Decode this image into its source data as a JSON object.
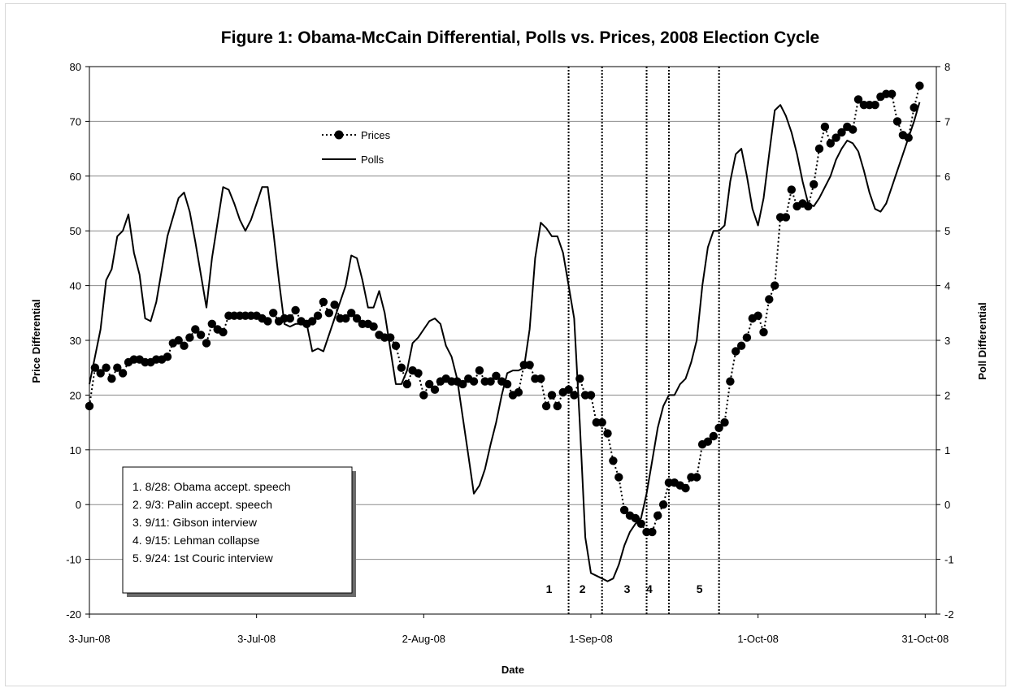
{
  "chart_data": {
    "type": "line",
    "title": "Figure 1: Obama-McCain Differential, Polls vs. Prices, 2008 Election Cycle",
    "xlabel": "Date",
    "ylabel_left": "Price Differential",
    "ylabel_right": "Poll Differential",
    "ylim_left": [
      -20,
      80
    ],
    "ylim_right": [
      -2,
      8
    ],
    "yticks_left": [
      "80",
      "70",
      "60",
      "50",
      "40",
      "30",
      "20",
      "10",
      "0",
      "-10",
      "-20"
    ],
    "yticks_right": [
      "8",
      "7",
      "6",
      "5",
      "4",
      "3",
      "2",
      "1",
      "0",
      "-1",
      "-2"
    ],
    "x_range_days": [
      0,
      152
    ],
    "x_ticks": [
      {
        "label": "3-Jun-08",
        "day": 0
      },
      {
        "label": "3-Jul-08",
        "day": 30
      },
      {
        "label": "2-Aug-08",
        "day": 60
      },
      {
        "label": "1-Sep-08",
        "day": 90
      },
      {
        "label": "1-Oct-08",
        "day": 120
      },
      {
        "label": "31-Oct-08",
        "day": 150
      }
    ],
    "grid": "horizontal",
    "legend_position": "top-left",
    "series": [
      {
        "name": "Prices",
        "axis": "left",
        "style": "dotted-markers",
        "points": [
          [
            0,
            18
          ],
          [
            1,
            25
          ],
          [
            2,
            24
          ],
          [
            3,
            25
          ],
          [
            4,
            23
          ],
          [
            5,
            25
          ],
          [
            6,
            24
          ],
          [
            7,
            26
          ],
          [
            8,
            26.5
          ],
          [
            9,
            26.5
          ],
          [
            10,
            26
          ],
          [
            11,
            26
          ],
          [
            12,
            26.5
          ],
          [
            13,
            26.5
          ],
          [
            14,
            27
          ],
          [
            15,
            29.5
          ],
          [
            16,
            30
          ],
          [
            17,
            29
          ],
          [
            18,
            30.5
          ],
          [
            19,
            32
          ],
          [
            20,
            31
          ],
          [
            21,
            29.5
          ],
          [
            22,
            33
          ],
          [
            23,
            32
          ],
          [
            24,
            31.5
          ],
          [
            25,
            34.5
          ],
          [
            26,
            34.5
          ],
          [
            27,
            34.5
          ],
          [
            28,
            34.5
          ],
          [
            29,
            34.5
          ],
          [
            30,
            34.5
          ],
          [
            31,
            34
          ],
          [
            32,
            33.5
          ],
          [
            33,
            35
          ],
          [
            34,
            33.5
          ],
          [
            35,
            34
          ],
          [
            36,
            34
          ],
          [
            37,
            35.5
          ],
          [
            38,
            33.5
          ],
          [
            39,
            33
          ],
          [
            40,
            33.5
          ],
          [
            41,
            34.5
          ],
          [
            42,
            37
          ],
          [
            43,
            35
          ],
          [
            44,
            36.5
          ],
          [
            45,
            34
          ],
          [
            46,
            34
          ],
          [
            47,
            35
          ],
          [
            48,
            34
          ],
          [
            49,
            33
          ],
          [
            50,
            33
          ],
          [
            51,
            32.5
          ],
          [
            52,
            31
          ],
          [
            53,
            30.5
          ],
          [
            54,
            30.5
          ],
          [
            55,
            29
          ],
          [
            56,
            25
          ],
          [
            57,
            22
          ],
          [
            58,
            24.5
          ],
          [
            59,
            24
          ],
          [
            60,
            20
          ],
          [
            61,
            22
          ],
          [
            62,
            21
          ],
          [
            63,
            22.5
          ],
          [
            64,
            23
          ],
          [
            65,
            22.5
          ],
          [
            66,
            22.5
          ],
          [
            67,
            22
          ],
          [
            68,
            23
          ],
          [
            69,
            22.5
          ],
          [
            70,
            24.5
          ],
          [
            71,
            22.5
          ],
          [
            72,
            22.5
          ],
          [
            73,
            23.5
          ],
          [
            74,
            22.5
          ],
          [
            75,
            22
          ],
          [
            76,
            20
          ],
          [
            77,
            20.5
          ],
          [
            78,
            25.5
          ],
          [
            79,
            25.5
          ],
          [
            80,
            23
          ],
          [
            81,
            23
          ],
          [
            82,
            18
          ],
          [
            83,
            20
          ],
          [
            84,
            18
          ],
          [
            85,
            20.5
          ],
          [
            86,
            21
          ],
          [
            87,
            20
          ],
          [
            88,
            23
          ],
          [
            89,
            20
          ],
          [
            90,
            20
          ],
          [
            91,
            15
          ],
          [
            92,
            15
          ],
          [
            93,
            13
          ],
          [
            94,
            8
          ],
          [
            95,
            5
          ],
          [
            96,
            -1
          ],
          [
            97,
            -2
          ],
          [
            98,
            -2.5
          ],
          [
            99,
            -3.5
          ],
          [
            100,
            -5
          ],
          [
            101,
            -5
          ],
          [
            102,
            -2
          ],
          [
            103,
            0
          ],
          [
            104,
            4
          ],
          [
            105,
            4
          ],
          [
            106,
            3.5
          ],
          [
            107,
            3
          ],
          [
            108,
            5
          ],
          [
            109,
            5
          ],
          [
            110,
            11
          ],
          [
            111,
            11.5
          ],
          [
            112,
            12.5
          ],
          [
            113,
            14
          ],
          [
            114,
            15
          ],
          [
            115,
            22.5
          ],
          [
            116,
            28
          ],
          [
            117,
            29
          ],
          [
            118,
            30.5
          ],
          [
            119,
            34
          ],
          [
            120,
            34.5
          ],
          [
            121,
            31.5
          ],
          [
            122,
            37.5
          ],
          [
            123,
            40
          ],
          [
            124,
            52.5
          ],
          [
            125,
            52.5
          ],
          [
            126,
            57.5
          ],
          [
            127,
            54.5
          ],
          [
            128,
            55
          ],
          [
            129,
            54.5
          ],
          [
            130,
            58.5
          ],
          [
            131,
            65
          ],
          [
            132,
            69
          ],
          [
            133,
            66
          ],
          [
            134,
            67
          ],
          [
            135,
            68
          ],
          [
            136,
            69
          ],
          [
            137,
            68.5
          ],
          [
            138,
            74
          ],
          [
            139,
            73
          ],
          [
            140,
            73
          ],
          [
            141,
            73
          ],
          [
            142,
            74.5
          ],
          [
            143,
            75
          ],
          [
            144,
            75
          ],
          [
            145,
            70
          ],
          [
            146,
            67.5
          ],
          [
            147,
            67
          ],
          [
            148,
            72.5
          ],
          [
            149,
            76.5
          ]
        ]
      },
      {
        "name": "Polls",
        "axis": "right",
        "style": "solid",
        "points": [
          [
            0,
            2.2
          ],
          [
            2,
            3.2
          ],
          [
            3,
            4.1
          ],
          [
            4,
            4.3
          ],
          [
            5,
            4.9
          ],
          [
            6,
            5.0
          ],
          [
            7,
            5.3
          ],
          [
            8,
            4.6
          ],
          [
            9,
            4.2
          ],
          [
            10,
            3.4
          ],
          [
            11,
            3.35
          ],
          [
            12,
            3.7
          ],
          [
            14,
            4.9
          ],
          [
            16,
            5.6
          ],
          [
            17,
            5.7
          ],
          [
            18,
            5.35
          ],
          [
            19,
            4.8
          ],
          [
            21,
            3.6
          ],
          [
            22,
            4.5
          ],
          [
            24,
            5.8
          ],
          [
            25,
            5.75
          ],
          [
            26,
            5.5
          ],
          [
            27,
            5.2
          ],
          [
            28,
            5.0
          ],
          [
            29,
            5.2
          ],
          [
            30,
            5.5
          ],
          [
            31,
            5.8
          ],
          [
            32,
            5.8
          ],
          [
            33,
            5.0
          ],
          [
            34,
            4.1
          ],
          [
            35,
            3.3
          ],
          [
            36,
            3.25
          ],
          [
            37,
            3.3
          ],
          [
            39,
            3.3
          ],
          [
            40,
            2.8
          ],
          [
            41,
            2.85
          ],
          [
            42,
            2.8
          ],
          [
            44,
            3.4
          ],
          [
            46,
            4.0
          ],
          [
            47,
            4.55
          ],
          [
            48,
            4.5
          ],
          [
            49,
            4.1
          ],
          [
            50,
            3.6
          ],
          [
            51,
            3.6
          ],
          [
            52,
            3.9
          ],
          [
            53,
            3.5
          ],
          [
            55,
            2.2
          ],
          [
            56,
            2.2
          ],
          [
            57,
            2.45
          ],
          [
            58,
            2.95
          ],
          [
            59,
            3.05
          ],
          [
            60,
            3.2
          ],
          [
            61,
            3.35
          ],
          [
            62,
            3.4
          ],
          [
            63,
            3.3
          ],
          [
            64,
            2.9
          ],
          [
            65,
            2.7
          ],
          [
            66,
            2.3
          ],
          [
            67,
            1.6
          ],
          [
            68,
            0.9
          ],
          [
            69,
            0.2
          ],
          [
            70,
            0.35
          ],
          [
            71,
            0.65
          ],
          [
            72,
            1.1
          ],
          [
            73,
            1.5
          ],
          [
            74,
            2.0
          ],
          [
            75,
            2.4
          ],
          [
            76,
            2.45
          ],
          [
            77,
            2.45
          ],
          [
            78,
            2.5
          ],
          [
            79,
            3.2
          ],
          [
            80,
            4.5
          ],
          [
            81,
            5.15
          ],
          [
            82,
            5.05
          ],
          [
            83,
            4.9
          ],
          [
            84,
            4.9
          ],
          [
            85,
            4.6
          ],
          [
            86,
            4.0
          ],
          [
            87,
            3.4
          ],
          [
            88,
            1.5
          ],
          [
            89,
            -0.6
          ],
          [
            90,
            -1.25
          ],
          [
            91,
            -1.3
          ],
          [
            92,
            -1.35
          ],
          [
            93,
            -1.4
          ],
          [
            94,
            -1.35
          ],
          [
            95,
            -1.1
          ],
          [
            96,
            -0.75
          ],
          [
            97,
            -0.5
          ],
          [
            98,
            -0.35
          ],
          [
            99,
            -0.25
          ],
          [
            100,
            0.2
          ],
          [
            101,
            0.8
          ],
          [
            102,
            1.4
          ],
          [
            103,
            1.8
          ],
          [
            104,
            2.0
          ],
          [
            105,
            2.0
          ],
          [
            106,
            2.2
          ],
          [
            107,
            2.3
          ],
          [
            108,
            2.6
          ],
          [
            109,
            3.0
          ],
          [
            110,
            4.0
          ],
          [
            111,
            4.7
          ],
          [
            112,
            5.0
          ],
          [
            113,
            5.0
          ],
          [
            114,
            5.1
          ],
          [
            115,
            5.9
          ],
          [
            116,
            6.4
          ],
          [
            117,
            6.5
          ],
          [
            118,
            6.0
          ],
          [
            119,
            5.4
          ],
          [
            120,
            5.1
          ],
          [
            121,
            5.6
          ],
          [
            122,
            6.4
          ],
          [
            123,
            7.2
          ],
          [
            124,
            7.3
          ],
          [
            125,
            7.1
          ],
          [
            126,
            6.8
          ],
          [
            127,
            6.4
          ],
          [
            128,
            5.9
          ],
          [
            129,
            5.5
          ],
          [
            130,
            5.45
          ],
          [
            131,
            5.6
          ],
          [
            132,
            5.8
          ],
          [
            133,
            6.0
          ],
          [
            134,
            6.3
          ],
          [
            135,
            6.5
          ],
          [
            136,
            6.65
          ],
          [
            137,
            6.6
          ],
          [
            138,
            6.45
          ],
          [
            139,
            6.1
          ],
          [
            140,
            5.7
          ],
          [
            141,
            5.4
          ],
          [
            142,
            5.35
          ],
          [
            143,
            5.5
          ],
          [
            144,
            5.8
          ],
          [
            145,
            6.1
          ],
          [
            146,
            6.4
          ],
          [
            147,
            6.7
          ],
          [
            148,
            7.0
          ],
          [
            149,
            7.35
          ]
        ]
      }
    ],
    "events": [
      {
        "marker": "1",
        "day": 86
      },
      {
        "marker": "2",
        "day": 92
      },
      {
        "marker": "3",
        "day": 100
      },
      {
        "marker": "4",
        "day": 104
      },
      {
        "marker": "5",
        "day": 113
      }
    ],
    "notes": [
      "1. 8/28: Obama accept. speech",
      "2. 9/3: Palin accept. speech",
      "3. 9/11: Gibson interview",
      "4. 9/15: Lehman collapse",
      "5. 9/24: 1st Couric interview"
    ]
  }
}
